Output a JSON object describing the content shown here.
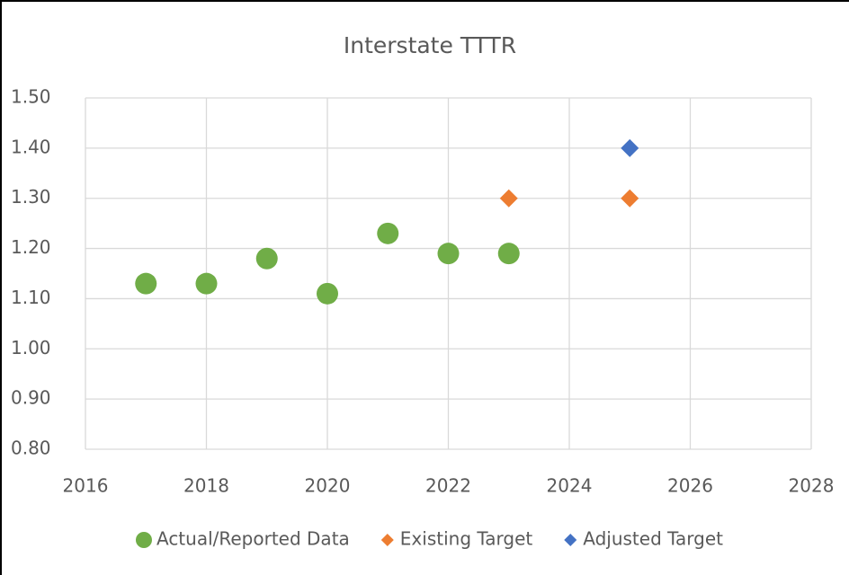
{
  "chart_data": {
    "type": "scatter",
    "title": "Interstate TTTR",
    "xlim": [
      2016,
      2028
    ],
    "xticks": [
      2016,
      2018,
      2020,
      2022,
      2024,
      2026,
      2028
    ],
    "ylim": [
      0.8,
      1.5
    ],
    "yticks": [
      {
        "value": 0.8,
        "label": "0.80"
      },
      {
        "value": 0.9,
        "label": "0.90"
      },
      {
        "value": 1.0,
        "label": "1.00"
      },
      {
        "value": 1.1,
        "label": "1.10"
      },
      {
        "value": 1.2,
        "label": "1.20"
      },
      {
        "value": 1.3,
        "label": "1.30"
      },
      {
        "value": 1.4,
        "label": "1.40"
      },
      {
        "value": 1.5,
        "label": "1.50"
      }
    ],
    "grid": true,
    "legend": "bottom",
    "series": [
      {
        "name": "Actual/Reported Data",
        "color": "#70ad47",
        "marker": "circle",
        "x": [
          2017,
          2018,
          2019,
          2020,
          2021,
          2022,
          2023
        ],
        "values": [
          1.13,
          1.13,
          1.18,
          1.11,
          1.23,
          1.19,
          1.19
        ]
      },
      {
        "name": "Existing Target",
        "color": "#ed7d31",
        "marker": "diamond",
        "x": [
          2023,
          2025
        ],
        "values": [
          1.3,
          1.3
        ]
      },
      {
        "name": "Adjusted Target",
        "color": "#4472c4",
        "marker": "diamond",
        "x": [
          2025
        ],
        "values": [
          1.4
        ]
      }
    ]
  }
}
